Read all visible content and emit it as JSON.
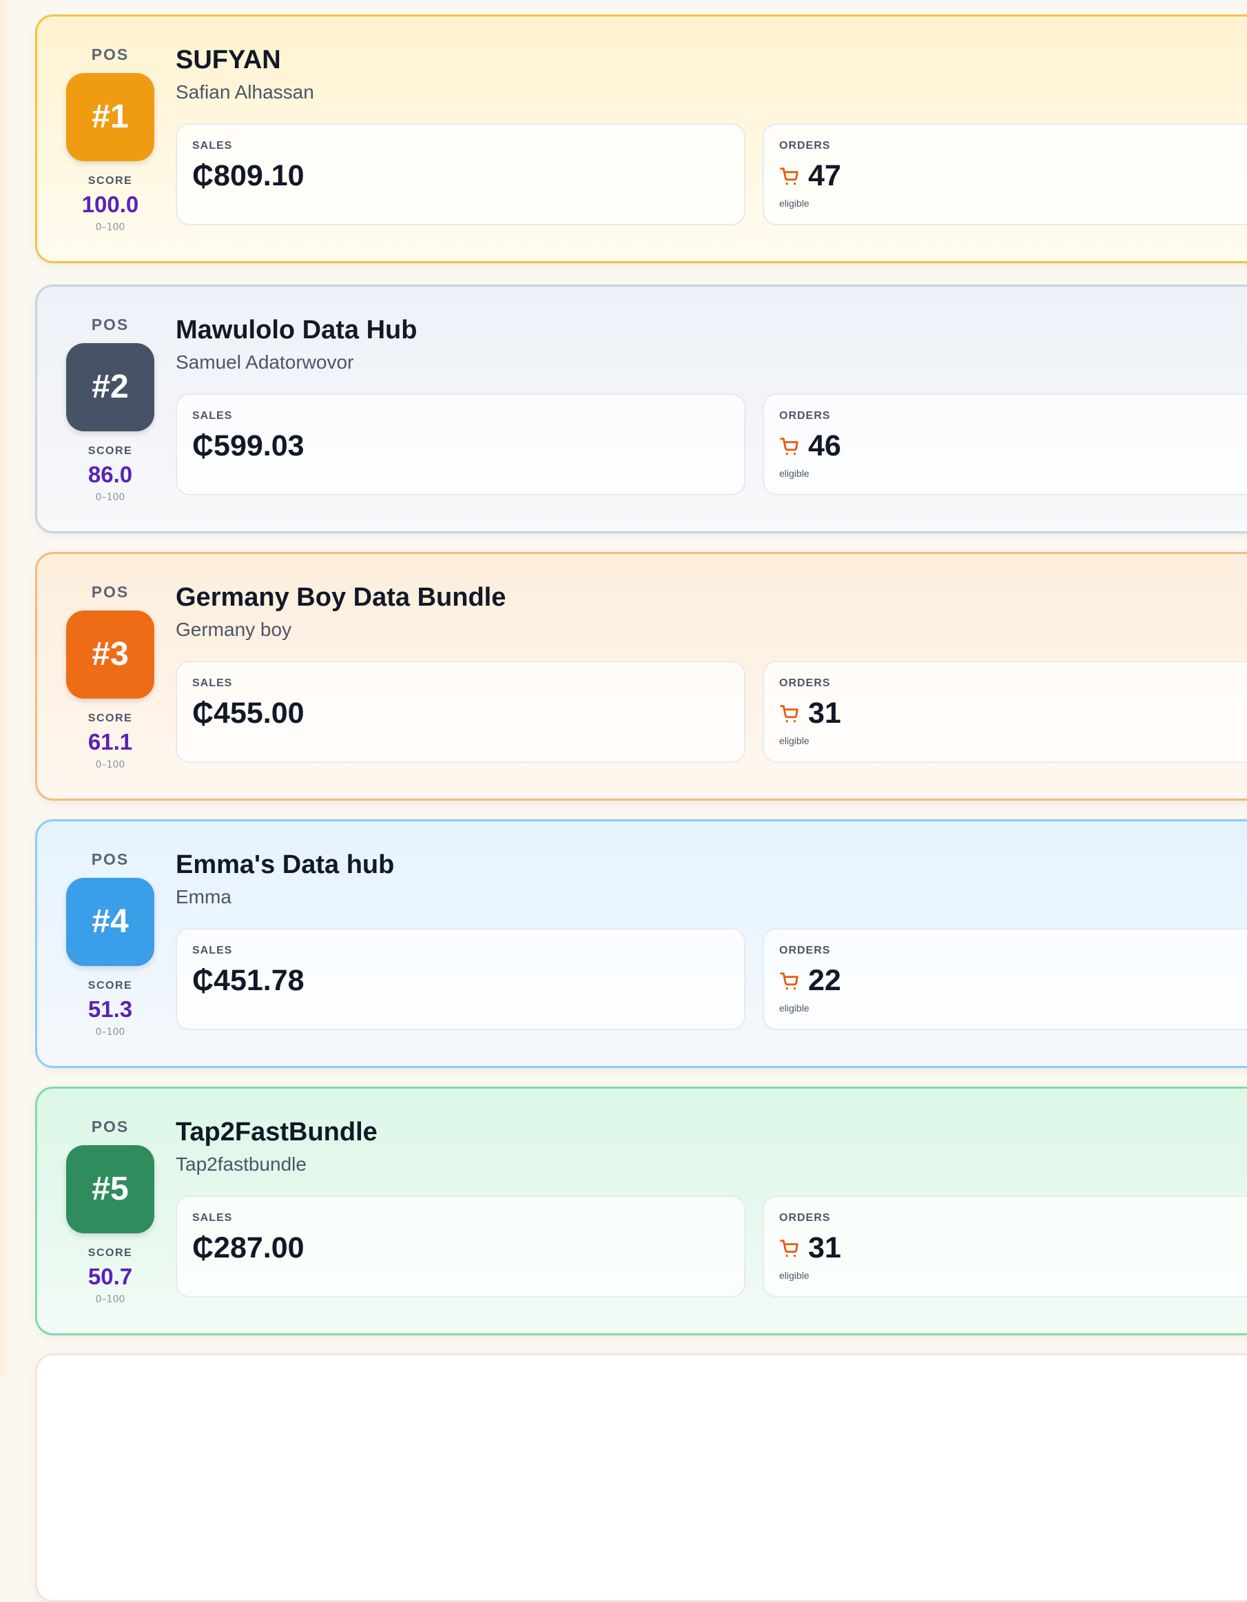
{
  "labels": {
    "pos": "POS",
    "score": "SCORE",
    "score_range": "0–100",
    "sales": "SALES",
    "orders": "ORDERS",
    "eligible": "eligible"
  },
  "icons": {
    "orders": "cart-icon"
  },
  "colors": {
    "score_text": "#5b21b6",
    "cart_icon": "#ea580c",
    "rank_1": "#f09c13",
    "rank_2": "#475266",
    "rank_3": "#ef6c16",
    "rank_4": "#3b9ee8",
    "rank_5": "#2f8d5d"
  },
  "leaderboard": [
    {
      "rank": "#1",
      "name": "SUFYAN",
      "owner": "Safian Alhassan",
      "score": "100.0",
      "sales": "₵809.10",
      "orders": "47"
    },
    {
      "rank": "#2",
      "name": "Mawulolo Data Hub",
      "owner": "Samuel Adatorwovor",
      "score": "86.0",
      "sales": "₵599.03",
      "orders": "46"
    },
    {
      "rank": "#3",
      "name": "Germany Boy Data Bundle",
      "owner": "Germany boy",
      "score": "61.1",
      "sales": "₵455.00",
      "orders": "31"
    },
    {
      "rank": "#4",
      "name": "Emma's Data hub",
      "owner": "Emma",
      "score": "51.3",
      "sales": "₵451.78",
      "orders": "22"
    },
    {
      "rank": "#5",
      "name": "Tap2FastBundle",
      "owner": "Tap2fastbundle",
      "score": "50.7",
      "sales": "₵287.00",
      "orders": "31"
    }
  ]
}
